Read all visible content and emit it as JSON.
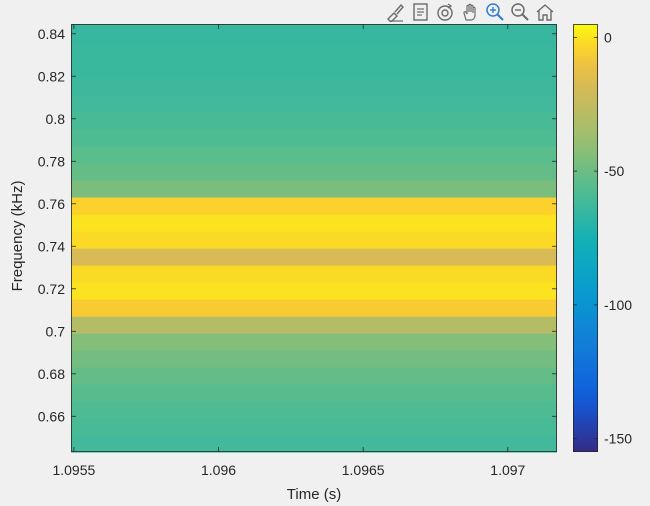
{
  "toolbar": {
    "buttons": [
      {
        "name": "brush-data-icon"
      },
      {
        "name": "data-tips-icon"
      },
      {
        "name": "rotate-3d-icon"
      },
      {
        "name": "pan-hand-icon"
      },
      {
        "name": "zoom-in-icon"
      },
      {
        "name": "zoom-out-icon"
      },
      {
        "name": "home-restore-view-icon"
      }
    ],
    "colors": {
      "default": "#6b6b6b",
      "active": "#2f7fd1"
    }
  },
  "chart_data": {
    "type": "heatmap",
    "title": "",
    "xlabel": "Time (s)",
    "ylabel": "Frequency (kHz)",
    "xlim": [
      1.09549,
      1.09717
    ],
    "ylim": [
      0.6432,
      0.8446
    ],
    "xticks": [
      1.0955,
      1.096,
      1.0965,
      1.097
    ],
    "xtick_labels": [
      "1.0955",
      "1.096",
      "1.0965",
      "1.097"
    ],
    "yticks": [
      0.66,
      0.68,
      0.7,
      0.72,
      0.74,
      0.76,
      0.78,
      0.8,
      0.82,
      0.84
    ],
    "ytick_labels": [
      "0.66",
      "0.68",
      "0.7",
      "0.72",
      "0.74",
      "0.76",
      "0.78",
      "0.8",
      "0.82",
      "0.84"
    ],
    "colormap": "parula",
    "clim": [
      -155,
      5
    ],
    "colorbar_ticks": [
      0,
      -50,
      -100,
      -150
    ],
    "colorbar_tick_labels": [
      "0",
      "-50",
      "-100",
      "-150"
    ],
    "freq_bins": [
      0.6472,
      0.6552,
      0.6632,
      0.6712,
      0.6792,
      0.6872,
      0.6952,
      0.7032,
      0.7112,
      0.7192,
      0.7272,
      0.7352,
      0.7432,
      0.7512,
      0.7592,
      0.7672,
      0.7752,
      0.7832,
      0.7912,
      0.7992,
      0.8072,
      0.8152,
      0.8232,
      0.8312,
      0.8392
    ],
    "power_db": [
      -62,
      -60,
      -58,
      -56,
      -52,
      -48,
      -44,
      -30,
      -6,
      0,
      -2,
      -18,
      -2,
      0,
      -4,
      -46,
      -52,
      -55,
      -58,
      -60,
      -62,
      -63,
      -64,
      -64,
      -65
    ]
  }
}
